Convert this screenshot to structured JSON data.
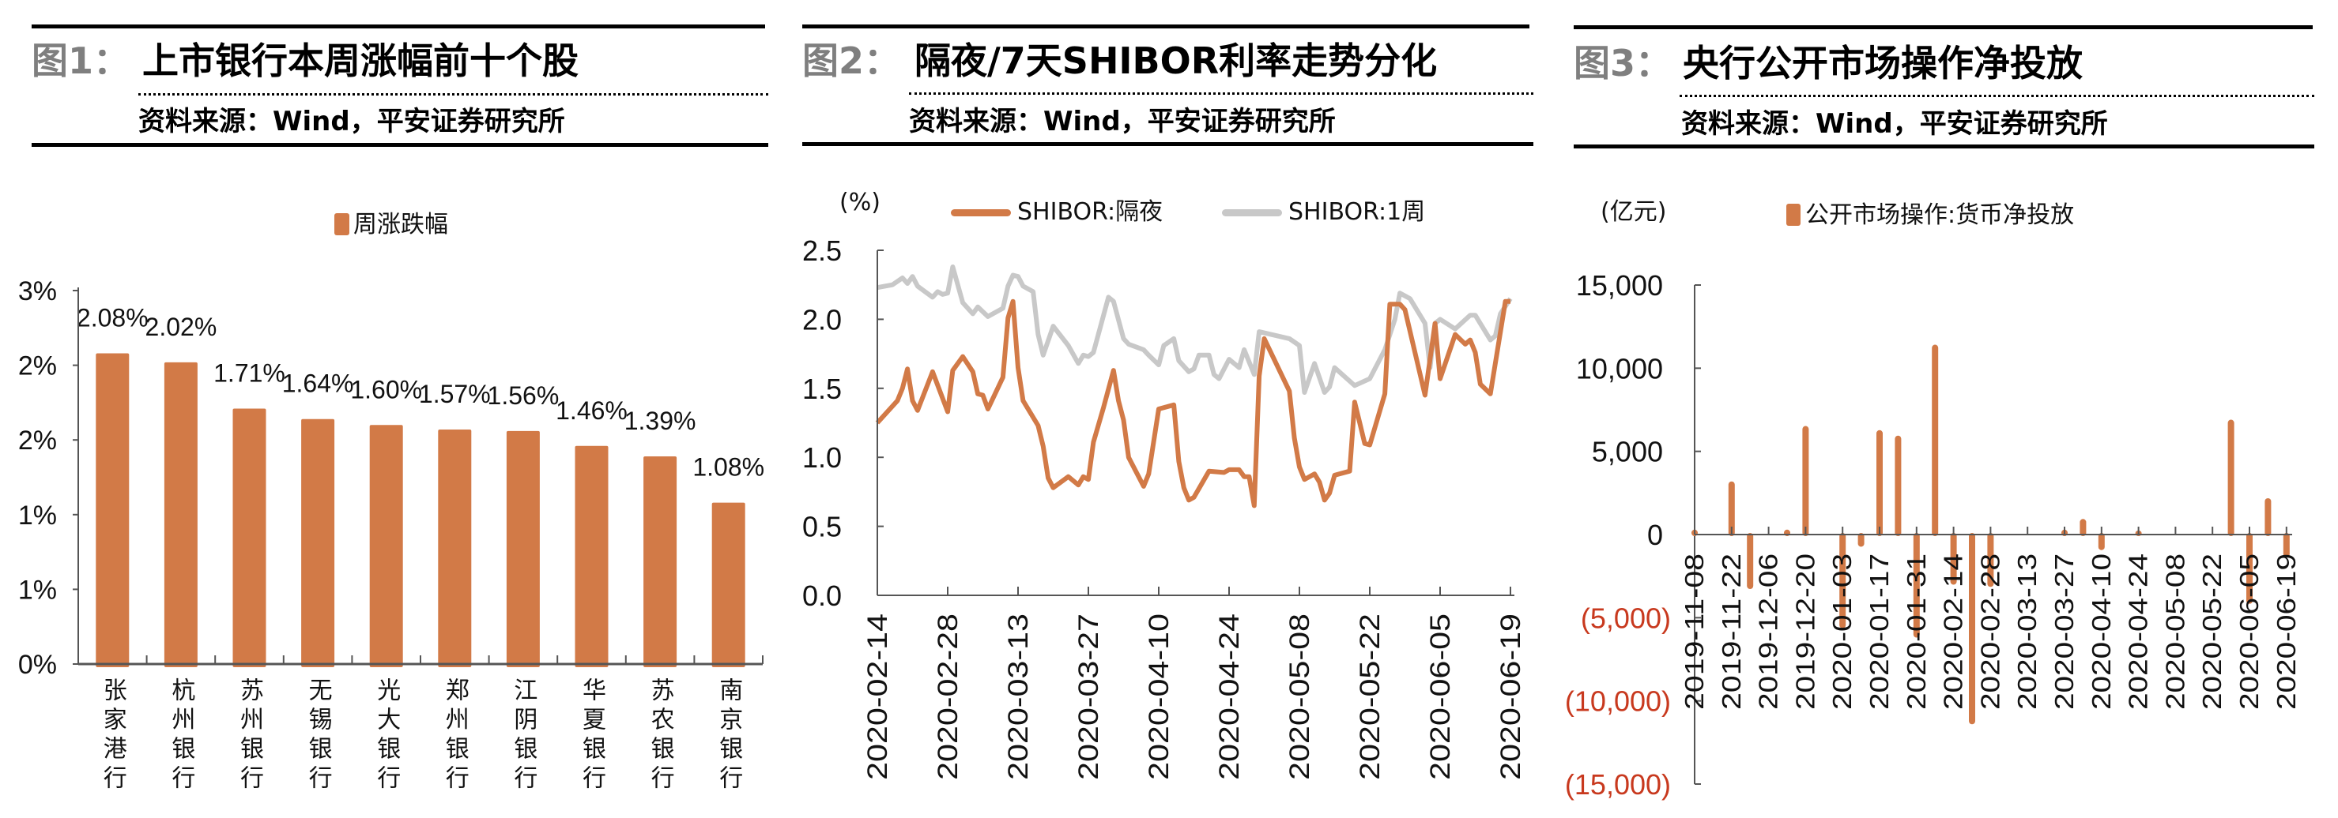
{
  "panels": [
    {
      "fig_label": "图1：",
      "title": "上市银行本周涨幅前十个股",
      "source": "资料来源：Wind，平安证券研究所"
    },
    {
      "fig_label": "图2：",
      "title": "隔夜/7天SHIBOR利率走势分化",
      "source": "资料来源：Wind，平安证券研究所"
    },
    {
      "fig_label": "图3：",
      "title": "央行公开市场操作净投放",
      "source": "资料来源：Wind，平安证券研究所"
    }
  ],
  "chart_data": [
    {
      "type": "bar",
      "title": "",
      "legend": [
        "周涨跌幅"
      ],
      "legend_position": "top",
      "categories": [
        "张家港行",
        "杭州银行",
        "苏州银行",
        "无锡银行",
        "光大银行",
        "郑州银行",
        "江阴银行",
        "华夏银行",
        "苏农银行",
        "南京银行"
      ],
      "values": [
        2.08,
        2.02,
        1.71,
        1.64,
        1.6,
        1.57,
        1.56,
        1.46,
        1.39,
        1.08
      ],
      "data_labels": [
        "2.08%",
        "2.02%",
        "1.71%",
        "1.64%",
        "1.60%",
        "1.57%",
        "1.56%",
        "1.46%",
        "1.39%",
        "1.08%"
      ],
      "ylim": [
        0,
        2.5
      ],
      "yticks": {
        "values": [
          0,
          0.5,
          1.0,
          1.5,
          2.0,
          2.5
        ],
        "labels": [
          "0%",
          "1%",
          "1%",
          "2%",
          "2%",
          "3%"
        ]
      },
      "grid": false,
      "colors": {
        "bar": "#d27a47"
      }
    },
    {
      "type": "line",
      "title": "",
      "ylabel": "(%)",
      "legend_position": "top",
      "ylim": [
        0,
        2.5
      ],
      "xlim": [
        "2020-02-14",
        "2020-06-19"
      ],
      "yticks": {
        "values": [
          0,
          0.5,
          1.0,
          1.5,
          2.0,
          2.5
        ],
        "labels": [
          "0.0",
          "0.5",
          "1.0",
          "1.5",
          "2.0",
          "2.5"
        ]
      },
      "xticks": [
        "2020-02-14",
        "2020-02-28",
        "2020-03-13",
        "2020-03-27",
        "2020-04-10",
        "2020-04-24",
        "2020-05-08",
        "2020-05-22",
        "2020-06-05",
        "2020-06-19"
      ],
      "grid": false,
      "series": [
        {
          "name": "SHIBOR:隔夜",
          "color": "#d27a47",
          "points": [
            [
              "2020-02-14",
              1.25
            ],
            [
              "2020-02-18",
              1.41
            ],
            [
              "2020-02-19",
              1.5
            ],
            [
              "2020-02-20",
              1.64
            ],
            [
              "2020-02-21",
              1.41
            ],
            [
              "2020-02-22",
              1.34
            ],
            [
              "2020-02-25",
              1.62
            ],
            [
              "2020-02-28",
              1.33
            ],
            [
              "2020-02-29",
              1.63
            ],
            [
              "2020-03-02",
              1.73
            ],
            [
              "2020-03-04",
              1.62
            ],
            [
              "2020-03-05",
              1.46
            ],
            [
              "2020-03-06",
              1.45
            ],
            [
              "2020-03-07",
              1.35
            ],
            [
              "2020-03-10",
              1.58
            ],
            [
              "2020-03-11",
              2.01
            ],
            [
              "2020-03-12",
              2.13
            ],
            [
              "2020-03-13",
              1.65
            ],
            [
              "2020-03-14",
              1.41
            ],
            [
              "2020-03-17",
              1.23
            ],
            [
              "2020-03-18",
              1.08
            ],
            [
              "2020-03-19",
              0.85
            ],
            [
              "2020-03-20",
              0.78
            ],
            [
              "2020-03-23",
              0.86
            ],
            [
              "2020-03-25",
              0.8
            ],
            [
              "2020-03-26",
              0.86
            ],
            [
              "2020-03-27",
              0.84
            ],
            [
              "2020-03-28",
              1.11
            ],
            [
              "2020-03-30",
              1.36
            ],
            [
              "2020-04-01",
              1.63
            ],
            [
              "2020-04-02",
              1.41
            ],
            [
              "2020-04-03",
              1.27
            ],
            [
              "2020-04-04",
              1.0
            ],
            [
              "2020-04-07",
              0.79
            ],
            [
              "2020-04-08",
              0.88
            ],
            [
              "2020-04-10",
              1.35
            ],
            [
              "2020-04-13",
              1.38
            ],
            [
              "2020-04-14",
              0.97
            ],
            [
              "2020-04-15",
              0.78
            ],
            [
              "2020-04-16",
              0.69
            ],
            [
              "2020-04-17",
              0.71
            ],
            [
              "2020-04-20",
              0.9
            ],
            [
              "2020-04-23",
              0.89
            ],
            [
              "2020-04-24",
              0.91
            ],
            [
              "2020-04-26",
              0.91
            ],
            [
              "2020-04-27",
              0.86
            ],
            [
              "2020-04-28",
              0.86
            ],
            [
              "2020-04-29",
              0.65
            ],
            [
              "2020-04-30",
              1.59
            ],
            [
              "2020-05-01",
              1.86
            ],
            [
              "2020-05-06",
              1.48
            ],
            [
              "2020-05-07",
              1.14
            ],
            [
              "2020-05-08",
              0.93
            ],
            [
              "2020-05-09",
              0.84
            ],
            [
              "2020-05-11",
              0.88
            ],
            [
              "2020-05-12",
              0.82
            ],
            [
              "2020-05-13",
              0.69
            ],
            [
              "2020-05-14",
              0.74
            ],
            [
              "2020-05-15",
              0.87
            ],
            [
              "2020-05-18",
              0.9
            ],
            [
              "2020-05-19",
              1.4
            ],
            [
              "2020-05-20",
              1.25
            ],
            [
              "2020-05-21",
              1.1
            ],
            [
              "2020-05-22",
              1.09
            ],
            [
              "2020-05-25",
              1.46
            ],
            [
              "2020-05-26",
              2.11
            ],
            [
              "2020-05-28",
              2.11
            ],
            [
              "2020-05-29",
              2.07
            ],
            [
              "2020-06-02",
              1.45
            ],
            [
              "2020-06-04",
              1.97
            ],
            [
              "2020-06-05",
              1.57
            ],
            [
              "2020-06-08",
              1.89
            ],
            [
              "2020-06-10",
              1.82
            ],
            [
              "2020-06-11",
              1.85
            ],
            [
              "2020-06-12",
              1.76
            ],
            [
              "2020-06-13",
              1.53
            ],
            [
              "2020-06-15",
              1.46
            ],
            [
              "2020-06-18",
              2.13
            ],
            [
              "2020-06-19",
              2.13
            ]
          ]
        },
        {
          "name": "SHIBOR:1周",
          "color": "#c8c8c8",
          "points": [
            [
              "2020-02-14",
              2.23
            ],
            [
              "2020-02-17",
              2.25
            ],
            [
              "2020-02-19",
              2.3
            ],
            [
              "2020-02-20",
              2.26
            ],
            [
              "2020-02-21",
              2.31
            ],
            [
              "2020-02-22",
              2.24
            ],
            [
              "2020-02-25",
              2.16
            ],
            [
              "2020-02-26",
              2.2
            ],
            [
              "2020-02-27",
              2.18
            ],
            [
              "2020-02-28",
              2.19
            ],
            [
              "2020-02-29",
              2.38
            ],
            [
              "2020-03-02",
              2.12
            ],
            [
              "2020-03-04",
              2.04
            ],
            [
              "2020-03-05",
              2.09
            ],
            [
              "2020-03-07",
              2.02
            ],
            [
              "2020-03-10",
              2.08
            ],
            [
              "2020-03-11",
              2.24
            ],
            [
              "2020-03-12",
              2.32
            ],
            [
              "2020-03-13",
              2.31
            ],
            [
              "2020-03-14",
              2.24
            ],
            [
              "2020-03-16",
              2.2
            ],
            [
              "2020-03-17",
              1.89
            ],
            [
              "2020-03-18",
              1.74
            ],
            [
              "2020-03-20",
              1.95
            ],
            [
              "2020-03-23",
              1.81
            ],
            [
              "2020-03-25",
              1.68
            ],
            [
              "2020-03-26",
              1.74
            ],
            [
              "2020-03-27",
              1.73
            ],
            [
              "2020-03-28",
              1.76
            ],
            [
              "2020-03-31",
              2.16
            ],
            [
              "2020-04-01",
              2.13
            ],
            [
              "2020-04-03",
              1.86
            ],
            [
              "2020-04-04",
              1.82
            ],
            [
              "2020-04-07",
              1.78
            ],
            [
              "2020-04-08",
              1.74
            ],
            [
              "2020-04-10",
              1.67
            ],
            [
              "2020-04-11",
              1.81
            ],
            [
              "2020-04-13",
              1.86
            ],
            [
              "2020-04-14",
              1.7
            ],
            [
              "2020-04-16",
              1.62
            ],
            [
              "2020-04-17",
              1.64
            ],
            [
              "2020-04-18",
              1.74
            ],
            [
              "2020-04-20",
              1.74
            ],
            [
              "2020-04-21",
              1.6
            ],
            [
              "2020-04-22",
              1.57
            ],
            [
              "2020-04-24",
              1.71
            ],
            [
              "2020-04-26",
              1.65
            ],
            [
              "2020-04-27",
              1.78
            ],
            [
              "2020-04-29",
              1.6
            ],
            [
              "2020-04-30",
              1.91
            ],
            [
              "2020-05-06",
              1.86
            ],
            [
              "2020-05-08",
              1.81
            ],
            [
              "2020-05-09",
              1.47
            ],
            [
              "2020-05-11",
              1.68
            ],
            [
              "2020-05-13",
              1.47
            ],
            [
              "2020-05-14",
              1.51
            ],
            [
              "2020-05-15",
              1.65
            ],
            [
              "2020-05-19",
              1.52
            ],
            [
              "2020-05-22",
              1.57
            ],
            [
              "2020-05-25",
              1.78
            ],
            [
              "2020-05-27",
              2.0
            ],
            [
              "2020-05-28",
              2.19
            ],
            [
              "2020-05-30",
              2.15
            ],
            [
              "2020-06-02",
              1.97
            ],
            [
              "2020-06-03",
              1.65
            ],
            [
              "2020-06-04",
              1.97
            ],
            [
              "2020-06-05",
              2.0
            ],
            [
              "2020-06-08",
              1.93
            ],
            [
              "2020-06-11",
              2.03
            ],
            [
              "2020-06-12",
              2.03
            ],
            [
              "2020-06-15",
              1.85
            ],
            [
              "2020-06-16",
              1.88
            ],
            [
              "2020-06-17",
              2.04
            ],
            [
              "2020-06-19",
              2.15
            ]
          ]
        }
      ]
    },
    {
      "type": "bar",
      "title": "",
      "ylabel": "(亿元)",
      "legend": [
        "公开市场操作:货币净投放"
      ],
      "legend_position": "top",
      "categories": [
        "2019-11-08",
        "2019-11-15",
        "2019-11-22",
        "2019-11-29",
        "2019-12-06",
        "2019-12-13",
        "2019-12-20",
        "2019-12-27",
        "2020-01-03",
        "2020-01-10",
        "2020-01-17",
        "2020-01-24",
        "2020-01-31",
        "2020-02-07",
        "2020-02-14",
        "2020-02-21",
        "2020-02-28",
        "2020-03-06",
        "2020-03-13",
        "2020-03-20",
        "2020-03-27",
        "2020-04-03",
        "2020-04-10",
        "2020-04-17",
        "2020-04-24",
        "2020-05-01",
        "2020-05-08",
        "2020-05-15",
        "2020-05-22",
        "2020-05-29",
        "2020-06-05",
        "2020-06-12",
        "2020-06-19"
      ],
      "values": [
        200,
        0,
        3100,
        -3180,
        0,
        200,
        6430,
        0,
        -5540,
        -640,
        6180,
        5850,
        -6100,
        11320,
        -2920,
        -11310,
        -3050,
        0,
        0,
        0,
        200,
        840,
        -840,
        0,
        150,
        0,
        0,
        0,
        0,
        6810,
        -4070,
        2090,
        -1270
      ],
      "xticks": [
        "2019-11-08",
        "2019-11-22",
        "2019-12-06",
        "2019-12-20",
        "2020-01-03",
        "2020-01-17",
        "2020-01-31",
        "2020-02-14",
        "2020-02-28",
        "2020-03-13",
        "2020-03-27",
        "2020-04-10",
        "2020-04-24",
        "2020-05-08",
        "2020-05-22",
        "2020-06-05",
        "2020-06-19"
      ],
      "ylim": [
        -15000,
        15000
      ],
      "yticks": {
        "values": [
          15000,
          10000,
          5000,
          0,
          -5000,
          -10000,
          -15000
        ],
        "labels": [
          "15,000",
          "10,000",
          "5,000",
          "0",
          "(5,000)",
          "(10,000)",
          "(15,000)"
        ]
      },
      "grid": false,
      "colors": {
        "bar": "#d27a47",
        "negative_label": "#c8391e"
      }
    }
  ]
}
